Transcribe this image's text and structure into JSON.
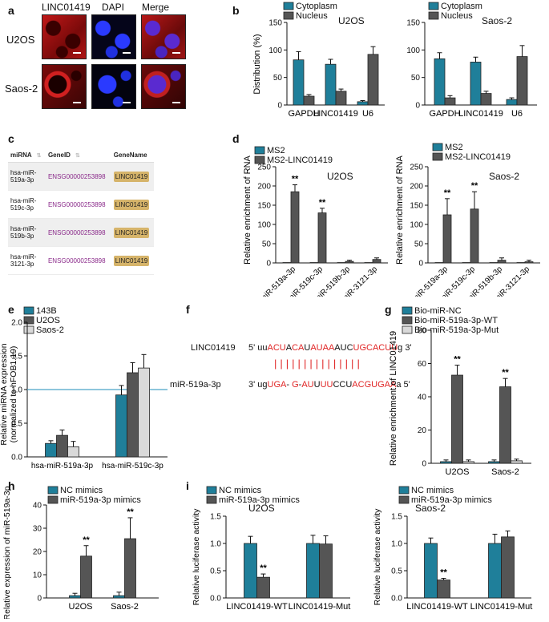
{
  "panels": {
    "a": "a",
    "b": "b",
    "c": "c",
    "d": "d",
    "e": "e",
    "f": "f",
    "g": "g",
    "h": "h",
    "i": "i"
  },
  "colors": {
    "teal": "#1f7f9a",
    "dark": "#555555",
    "light": "#d9d9d9",
    "red": "#e02424",
    "hline": "#4aa3c8"
  },
  "panel_a": {
    "columns": [
      "LINC01419",
      "DAPI",
      "Merge"
    ],
    "rows": [
      "U2OS",
      "Saos-2"
    ]
  },
  "panel_c": {
    "headers": [
      "miRNA",
      "GeneID",
      "GeneName"
    ],
    "rows": [
      {
        "mirna": [
          "hsa-miR-",
          "519a-3p"
        ],
        "gene_id": "ENSG00000253898",
        "gene_name": "LINC01419"
      },
      {
        "mirna": [
          "hsa-miR-",
          "519c-3p"
        ],
        "gene_id": "ENSG00000253898",
        "gene_name": "LINC01419"
      },
      {
        "mirna": [
          "hsa-miR-",
          "519b-3p"
        ],
        "gene_id": "ENSG00000253898",
        "gene_name": "LINC01419"
      },
      {
        "mirna": [
          "hsa-miR-",
          "3121-3p"
        ],
        "gene_id": "ENSG00000253898",
        "gene_name": "LINC01419"
      }
    ]
  },
  "panel_f": {
    "line1_label": "LINC01419",
    "line1_seq": [
      [
        "5' uu",
        "k"
      ],
      [
        "ACU",
        "r"
      ],
      [
        "A",
        "k"
      ],
      [
        "CA",
        "r"
      ],
      [
        "U",
        "k"
      ],
      [
        "AUAA",
        "r"
      ],
      [
        "AUC",
        "k"
      ],
      [
        "UGCACUU",
        "r"
      ],
      [
        "g 3'",
        "k"
      ]
    ],
    "bonds": "| | |   | |   | | |   | | | | | | |",
    "line2_label": "miR-519a-3p",
    "line2_seq": [
      [
        "3' ug",
        "k"
      ],
      [
        "UGA",
        "r"
      ],
      [
        "- ",
        "k"
      ],
      [
        "G",
        "r"
      ],
      [
        "-",
        "k"
      ],
      [
        "AU",
        "r"
      ],
      [
        "U",
        "k"
      ],
      [
        "UU",
        "r"
      ],
      [
        "CCU",
        "k"
      ],
      [
        "ACGUGAA",
        "r"
      ],
      [
        "a 5'",
        "k"
      ]
    ]
  },
  "chart_data": [
    {
      "id": "b1",
      "type": "bar",
      "title": "U2OS",
      "ylabel": "Distribution (%)",
      "categories": [
        "GAPDH",
        "LINC01419",
        "U6"
      ],
      "ylim": [
        0,
        150
      ],
      "yticks": [
        0,
        50,
        100,
        150
      ],
      "series": [
        {
          "name": "Cytoplasm",
          "color": "#1f7f9a",
          "values": [
            82,
            74,
            6
          ],
          "errors": [
            15,
            9,
            2
          ]
        },
        {
          "name": "Nucleus",
          "color": "#555555",
          "values": [
            16,
            25,
            92
          ],
          "errors": [
            3,
            4,
            14
          ]
        }
      ],
      "legend": [
        "Cytoplasm",
        "Nucleus"
      ]
    },
    {
      "id": "b2",
      "type": "bar",
      "title": "Saos-2",
      "ylabel": "",
      "categories": [
        "GAPDH",
        "LINC01419",
        "U6"
      ],
      "ylim": [
        0,
        150
      ],
      "yticks": [
        0,
        50,
        100,
        150
      ],
      "series": [
        {
          "name": "Cytoplasm",
          "color": "#1f7f9a",
          "values": [
            84,
            78,
            10
          ],
          "errors": [
            11,
            9,
            3
          ]
        },
        {
          "name": "Nucleus",
          "color": "#555555",
          "values": [
            13,
            21,
            88
          ],
          "errors": [
            4,
            4,
            20
          ]
        }
      ],
      "legend": [
        "Cytoplasm",
        "Nucleus"
      ]
    },
    {
      "id": "d1",
      "type": "bar",
      "title": "U2OS",
      "ylabel": "Relative enrichment of RNA",
      "categories": [
        "hsa-miR-519a-3p",
        "hsa-miR-519c-3p",
        "hsa-miR-519b-3p",
        "hsa-miR-3121-3p"
      ],
      "ylim": [
        0,
        250
      ],
      "yticks": [
        0,
        50,
        100,
        150,
        200,
        250
      ],
      "series": [
        {
          "name": "MS2",
          "color": "#1f7f9a",
          "values": [
            1,
            1,
            1,
            1
          ],
          "errors": [
            0,
            0,
            0,
            0
          ]
        },
        {
          "name": "MS2-LINC01419",
          "color": "#555555",
          "values": [
            185,
            130,
            4,
            9
          ],
          "errors": [
            18,
            12,
            3,
            4
          ]
        }
      ],
      "annotations": [
        {
          "category": 0,
          "text": "**"
        },
        {
          "category": 1,
          "text": "**"
        }
      ],
      "legend": [
        "MS2",
        "MS2-LINC01419"
      ]
    },
    {
      "id": "d2",
      "type": "bar",
      "title": "Saos-2",
      "ylabel": "Relative enrichment of RNA",
      "categories": [
        "hsa-miR-519a-3p",
        "hsa-miR-519c-3p",
        "hsa-miR-519b-3p",
        "hsa-miR-3121-3p"
      ],
      "ylim": [
        0,
        250
      ],
      "yticks": [
        0,
        50,
        100,
        150,
        200,
        250
      ],
      "series": [
        {
          "name": "MS2",
          "color": "#1f7f9a",
          "values": [
            1,
            1,
            1,
            1
          ],
          "errors": [
            0,
            0,
            0,
            0
          ]
        },
        {
          "name": "MS2-LINC01419",
          "color": "#555555",
          "values": [
            125,
            140,
            7,
            3
          ],
          "errors": [
            42,
            45,
            6,
            4
          ]
        }
      ],
      "annotations": [
        {
          "category": 0,
          "text": "**"
        },
        {
          "category": 1,
          "text": "**"
        }
      ],
      "legend": [
        "MS2",
        "MS2-LINC01419"
      ]
    },
    {
      "id": "e",
      "type": "bar",
      "title": "",
      "ylabel": "Relative miRNA expression",
      "ylabel2": "(normalized to hFOB1.19)",
      "categories": [
        "hsa-miR-519a-3p",
        "hsa-miR-519c-3p"
      ],
      "ylim": [
        0,
        2.0
      ],
      "yticks": [
        0.0,
        0.5,
        1.0,
        1.5,
        2.0
      ],
      "reference_line": 1.0,
      "series": [
        {
          "name": "143B",
          "color": "#1f7f9a",
          "values": [
            0.2,
            0.92
          ],
          "errors": [
            0.04,
            0.14
          ]
        },
        {
          "name": "U2OS",
          "color": "#555555",
          "values": [
            0.32,
            1.25
          ],
          "errors": [
            0.08,
            0.15
          ]
        },
        {
          "name": "Saos-2",
          "color": "#d9d9d9",
          "values": [
            0.15,
            1.32
          ],
          "errors": [
            0.08,
            0.2
          ]
        }
      ],
      "legend": [
        "143B",
        "U2OS",
        "Saos-2"
      ]
    },
    {
      "id": "g",
      "type": "bar",
      "title": "",
      "ylabel": "Relative enrichment of LINC01419",
      "categories": [
        "U2OS",
        "Saos-2"
      ],
      "ylim": [
        0,
        80
      ],
      "yticks": [
        0,
        20,
        40,
        60,
        80
      ],
      "series": [
        {
          "name": "Bio-miR-NC",
          "color": "#1f7f9a",
          "values": [
            1,
            1
          ],
          "errors": [
            1,
            1
          ]
        },
        {
          "name": "Bio-miR-519a-3p-WT",
          "color": "#555555",
          "values": [
            53,
            46
          ],
          "errors": [
            6,
            5
          ]
        },
        {
          "name": "Bio-miR-519a-3p-Mut",
          "color": "#d9d9d9",
          "values": [
            1,
            1.5
          ],
          "errors": [
            1,
            1
          ]
        }
      ],
      "annotations": [
        {
          "category": 0,
          "text": "**"
        },
        {
          "category": 1,
          "text": "**"
        }
      ],
      "legend": [
        "Bio-miR-NC",
        "Bio-miR-519a-3p-WT",
        "Bio-miR-519a-3p-Mut"
      ]
    },
    {
      "id": "h",
      "type": "bar",
      "title": "",
      "ylabel": "Relative expression of miR-519a-3p",
      "categories": [
        "U2OS",
        "Saos-2"
      ],
      "ylim": [
        0,
        40
      ],
      "yticks": [
        0,
        10,
        20,
        30,
        40
      ],
      "series": [
        {
          "name": "NC mimics",
          "color": "#1f7f9a",
          "values": [
            1,
            1
          ],
          "errors": [
            1,
            1.5
          ]
        },
        {
          "name": "miR-519a-3p mimics",
          "color": "#555555",
          "values": [
            18,
            25.5
          ],
          "errors": [
            4.5,
            9
          ]
        }
      ],
      "annotations": [
        {
          "category": 0,
          "text": "**"
        },
        {
          "category": 1,
          "text": "**"
        }
      ],
      "legend": [
        "NC mimics",
        "miR-519a-3p mimics"
      ]
    },
    {
      "id": "i1",
      "type": "bar",
      "title": "U2OS",
      "ylabel": "Relative luciferase activity",
      "categories": [
        "LINC01419-WT",
        "LINC01419-Mut"
      ],
      "ylim": [
        0,
        1.5
      ],
      "yticks": [
        0.0,
        0.5,
        1.0,
        1.5
      ],
      "series": [
        {
          "name": "NC mimics",
          "color": "#1f7f9a",
          "values": [
            1.0,
            1.0
          ],
          "errors": [
            0.13,
            0.15
          ]
        },
        {
          "name": "miR-519a-3p mimics",
          "color": "#555555",
          "values": [
            0.38,
            0.99
          ],
          "errors": [
            0.06,
            0.15
          ]
        }
      ],
      "annotations": [
        {
          "category": 0,
          "text": "**"
        }
      ],
      "legend": [
        "NC mimics",
        "miR-519a-3p mimics"
      ]
    },
    {
      "id": "i2",
      "type": "bar",
      "title": "Saos-2",
      "ylabel": "Relative luciferase activity",
      "categories": [
        "LINC01419-WT",
        "LINC01419-Mut"
      ],
      "ylim": [
        0,
        1.5
      ],
      "yticks": [
        0.0,
        0.5,
        1.0,
        1.5
      ],
      "series": [
        {
          "name": "NC mimics",
          "color": "#1f7f9a",
          "values": [
            1.0,
            1.0
          ],
          "errors": [
            0.1,
            0.17
          ]
        },
        {
          "name": "miR-519a-3p mimics",
          "color": "#555555",
          "values": [
            0.33,
            1.12
          ],
          "errors": [
            0.03,
            0.11
          ]
        }
      ],
      "annotations": [
        {
          "category": 0,
          "text": "**"
        }
      ],
      "legend": [
        "NC mimics",
        "miR-519a-3p mimics"
      ]
    }
  ]
}
